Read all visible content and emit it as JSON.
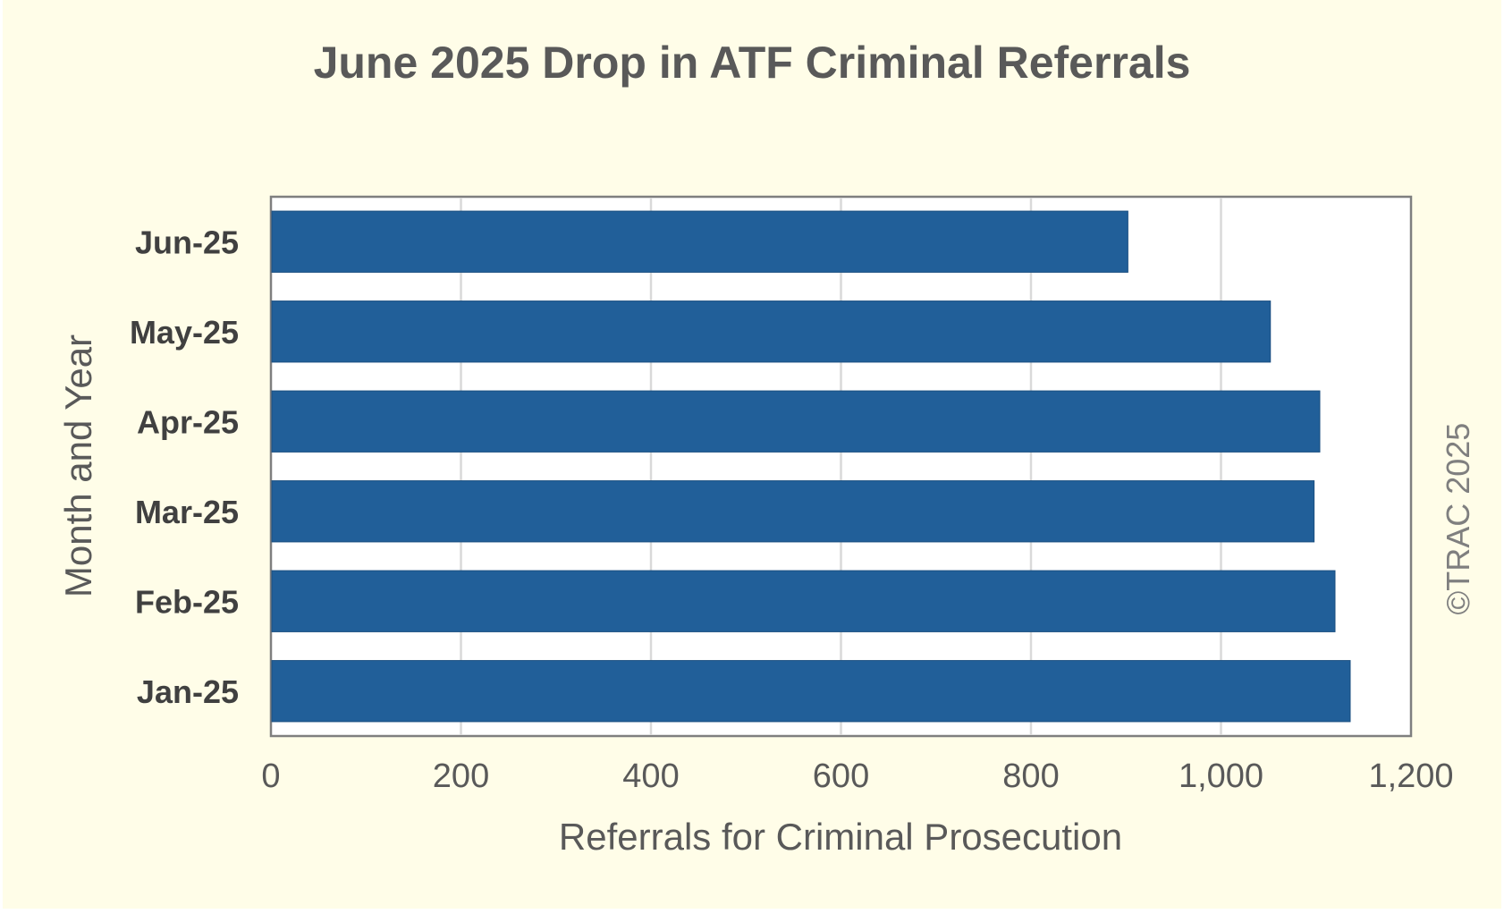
{
  "chart_data": {
    "type": "bar",
    "orientation": "horizontal",
    "title": "June 2025 Drop in ATF Criminal Referrals",
    "xlabel": "Referrals for Criminal Prosecution",
    "ylabel": "Month and Year",
    "categories": [
      "Jan-25",
      "Feb-25",
      "Mar-25",
      "Apr-25",
      "May-25",
      "Jun-25"
    ],
    "values": [
      1136,
      1120,
      1098,
      1104,
      1052,
      902
    ],
    "xlim": [
      0,
      1200
    ],
    "xticks": [
      0,
      200,
      400,
      600,
      800,
      1000,
      1200
    ],
    "xtick_labels": [
      "0",
      "200",
      "400",
      "600",
      "800",
      "1,000",
      "1,200"
    ],
    "grid": "vertical",
    "legend": "none",
    "bar_color": "#215f99",
    "credit": "©TRAC 2025"
  }
}
